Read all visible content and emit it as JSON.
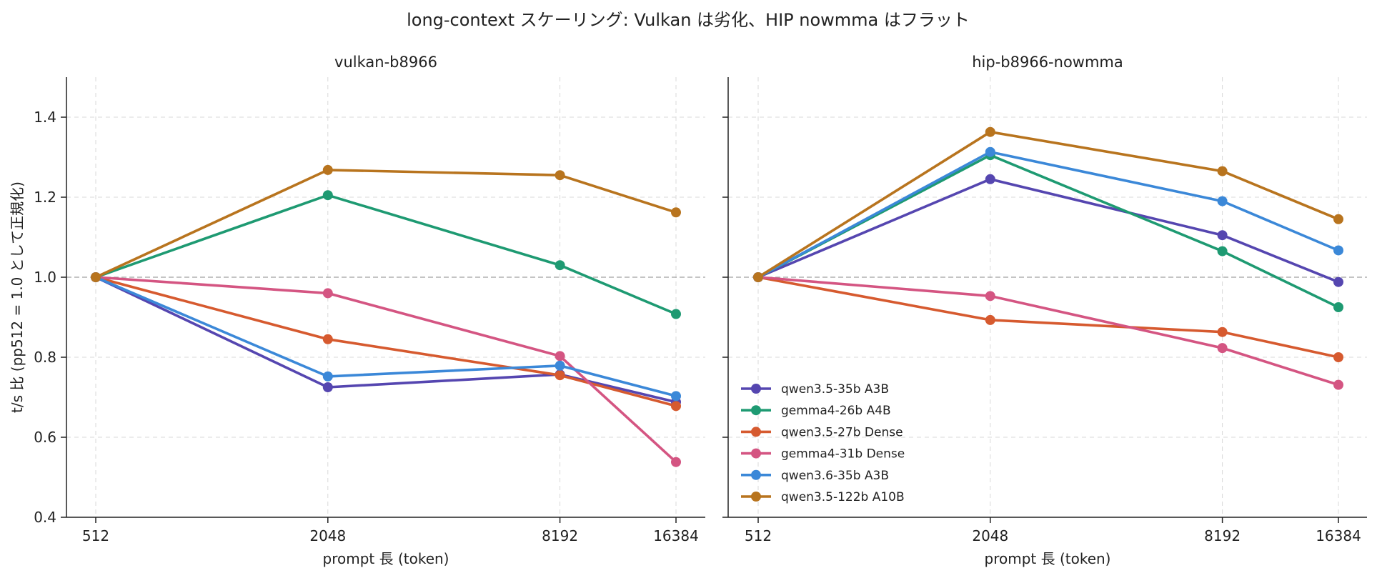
{
  "figure": {
    "title": "long-context スケーリング: Vulkan は劣化、HIP nowmma はフラット"
  },
  "chart_data": [
    {
      "type": "line",
      "title": "vulkan-b8966",
      "xlabel": "prompt 長 (token)",
      "ylabel": "t/s 比 (pp512 = 1.0 として正規化)",
      "x_scale": "log2",
      "x": [
        512,
        2048,
        8192,
        16384
      ],
      "xticks": [
        "512",
        "2048",
        "8192",
        "16384"
      ],
      "ylim": [
        0.4,
        1.5
      ],
      "yticks": [
        "0.4",
        "0.6",
        "0.8",
        "1.0",
        "1.2",
        "1.4"
      ],
      "grid": true,
      "reference_line": 1.0,
      "series": [
        {
          "name": "qwen3.5-35b A3B",
          "color": "#5546b0",
          "values": [
            1.0,
            0.725,
            0.757,
            0.688
          ]
        },
        {
          "name": "gemma4-26b A4B",
          "color": "#1e9a72",
          "values": [
            1.0,
            1.205,
            1.03,
            0.908
          ]
        },
        {
          "name": "qwen3.5-27b Dense",
          "color": "#d65a2f",
          "values": [
            1.0,
            0.845,
            0.755,
            0.678
          ]
        },
        {
          "name": "gemma4-31b Dense",
          "color": "#d45582",
          "values": [
            1.0,
            0.96,
            0.803,
            0.538
          ]
        },
        {
          "name": "qwen3.6-35b A3B",
          "color": "#3b88d8",
          "values": [
            1.0,
            0.752,
            0.779,
            0.703
          ]
        },
        {
          "name": "qwen3.5-122b A10B",
          "color": "#b8741e",
          "values": [
            1.0,
            1.268,
            1.255,
            1.162
          ]
        }
      ]
    },
    {
      "type": "line",
      "title": "hip-b8966-nowmma",
      "xlabel": "prompt 長 (token)",
      "x_scale": "log2",
      "x": [
        512,
        2048,
        8192,
        16384
      ],
      "xticks": [
        "512",
        "2048",
        "8192",
        "16384"
      ],
      "ylim": [
        0.4,
        1.5
      ],
      "grid": true,
      "reference_line": 1.0,
      "legend": "lower-left",
      "series": [
        {
          "name": "qwen3.5-35b A3B",
          "color": "#5546b0",
          "values": [
            1.0,
            1.245,
            1.105,
            0.988
          ]
        },
        {
          "name": "gemma4-26b A4B",
          "color": "#1e9a72",
          "values": [
            1.0,
            1.305,
            1.065,
            0.925
          ]
        },
        {
          "name": "qwen3.5-27b Dense",
          "color": "#d65a2f",
          "values": [
            1.0,
            0.893,
            0.863,
            0.8
          ]
        },
        {
          "name": "gemma4-31b Dense",
          "color": "#d45582",
          "values": [
            1.0,
            0.953,
            0.823,
            0.731
          ]
        },
        {
          "name": "qwen3.6-35b A3B",
          "color": "#3b88d8",
          "values": [
            1.0,
            1.313,
            1.19,
            1.067
          ]
        },
        {
          "name": "qwen3.5-122b A10B",
          "color": "#b8741e",
          "values": [
            1.0,
            1.363,
            1.265,
            1.145
          ]
        }
      ]
    }
  ]
}
